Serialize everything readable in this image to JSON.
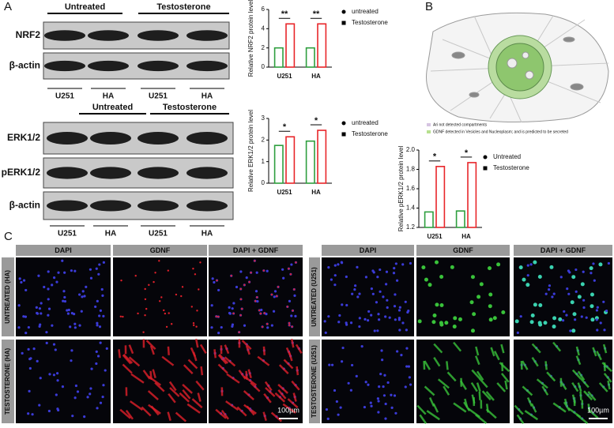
{
  "panels": {
    "a": "A",
    "b": "B",
    "c": "C"
  },
  "blot1": {
    "groups": [
      "Untreated",
      "Testosterone"
    ],
    "rows": [
      "NRF2",
      "β-actin"
    ],
    "lanes": [
      "U251",
      "HA",
      "U251",
      "HA"
    ]
  },
  "blot2": {
    "groups": [
      "Untreated",
      "Testosterone"
    ],
    "rows": [
      "ERK1/2",
      "pERK1/2",
      "β-actin"
    ],
    "lanes": [
      "U251",
      "HA",
      "U251",
      "HA"
    ]
  },
  "diagram": {
    "legend": [
      "Ari not detected compartments",
      "GDNF detected in Vesicles and Nucleoplasm; and is predicted to be secreted"
    ]
  },
  "micro_left": {
    "columns": [
      "DAPI",
      "GDNF",
      "DAPI + GDNF"
    ],
    "rows": [
      "UNTREATED (HA)",
      "TESTOSTERONE (HA)"
    ],
    "scale": "100µm"
  },
  "micro_right": {
    "columns": [
      "DAPI",
      "GDNF",
      "DAPI + GDNF"
    ],
    "rows": [
      "UNTREATED (U251)",
      "TESTOSTERONE (U251)"
    ],
    "scale": "100µm"
  },
  "chart_data": [
    {
      "type": "bar",
      "ylabel": "Relative NRF2 protein level",
      "categories": [
        "U251",
        "HA"
      ],
      "series": [
        {
          "name": "untreated",
          "color": "#2e9e3e",
          "values": [
            2.0,
            2.0
          ]
        },
        {
          "name": "Testosterone",
          "color": "#e8262a",
          "values": [
            4.5,
            4.5
          ]
        }
      ],
      "ylim": [
        0,
        6
      ],
      "yticks": [
        0,
        2,
        4,
        6
      ],
      "annotations": [
        "**",
        "**"
      ]
    },
    {
      "type": "bar",
      "ylabel": "Relative ERK1/2 protein level",
      "categories": [
        "U251",
        "HA"
      ],
      "series": [
        {
          "name": "untreated",
          "color": "#2e9e3e",
          "values": [
            1.75,
            1.95
          ]
        },
        {
          "name": "Testosterone",
          "color": "#e8262a",
          "values": [
            2.15,
            2.45
          ]
        }
      ],
      "ylim": [
        0,
        3
      ],
      "yticks": [
        0,
        1,
        2,
        3
      ],
      "annotations": [
        "*",
        "*"
      ]
    },
    {
      "type": "bar",
      "ylabel": "Relative pERK1/2 protein level",
      "categories": [
        "U251",
        "HA"
      ],
      "series": [
        {
          "name": "Untreated",
          "color": "#2e9e3e",
          "values": [
            1.36,
            1.37
          ]
        },
        {
          "name": "Testosterone",
          "color": "#e8262a",
          "values": [
            1.83,
            1.87
          ]
        }
      ],
      "ylim": [
        1.2,
        2.0
      ],
      "yticks": [
        1.2,
        1.4,
        1.6,
        1.8,
        {
          "value": 2.0,
          "label": "2.0"
        }
      ],
      "annotations": [
        "*",
        "*"
      ]
    }
  ]
}
